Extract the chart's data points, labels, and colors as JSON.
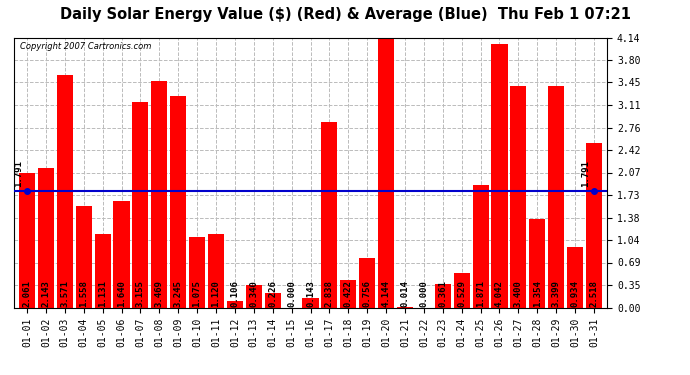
{
  "title": "Daily Solar Energy Value ($) (Red) & Average (Blue)  Thu Feb 1 07:21",
  "copyright": "Copyright 2007 Cartronics.com",
  "categories": [
    "01-01",
    "01-02",
    "01-03",
    "01-04",
    "01-05",
    "01-06",
    "01-07",
    "01-08",
    "01-09",
    "01-10",
    "01-11",
    "01-12",
    "01-13",
    "01-14",
    "01-15",
    "01-16",
    "01-17",
    "01-18",
    "01-19",
    "01-20",
    "01-21",
    "01-22",
    "01-23",
    "01-24",
    "01-25",
    "01-26",
    "01-27",
    "01-28",
    "01-29",
    "01-30",
    "01-31"
  ],
  "values": [
    2.061,
    2.143,
    3.571,
    1.558,
    1.131,
    1.64,
    3.155,
    3.469,
    3.245,
    1.075,
    1.12,
    0.106,
    0.34,
    0.226,
    0.0,
    0.143,
    2.838,
    0.422,
    0.756,
    4.144,
    0.014,
    0.0,
    0.361,
    0.529,
    1.871,
    4.042,
    3.4,
    1.354,
    3.399,
    0.934,
    2.518
  ],
  "average": 1.791,
  "ylim": [
    0.0,
    4.14
  ],
  "yticks": [
    0.0,
    0.35,
    0.69,
    1.04,
    1.38,
    1.73,
    2.07,
    2.42,
    2.76,
    3.11,
    3.45,
    3.8,
    4.14
  ],
  "bar_color": "#FF0000",
  "avg_line_color": "#0000CC",
  "background_color": "#FFFFFF",
  "plot_bg_color": "#FFFFFF",
  "grid_color": "#CCCCCC",
  "title_fontsize": 10.5,
  "tick_fontsize": 7,
  "val_fontsize": 6.5,
  "avg_fontsize": 6.5
}
